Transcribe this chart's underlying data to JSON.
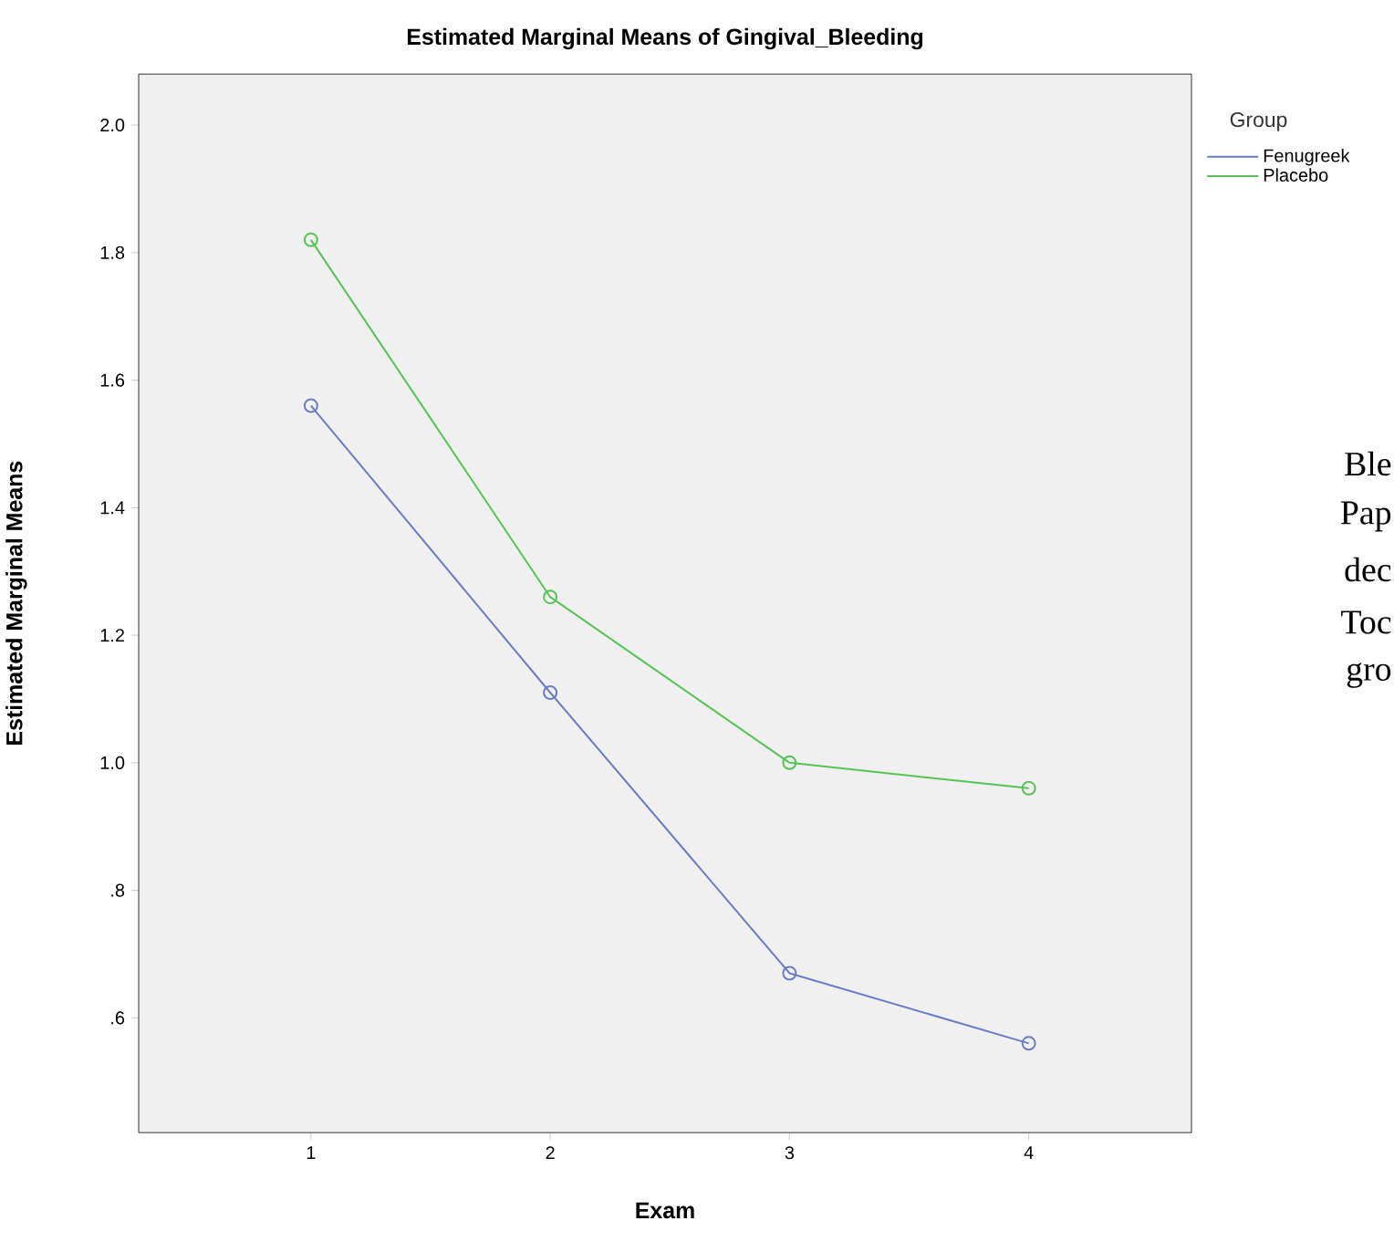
{
  "chart_data": {
    "type": "line",
    "title": "Estimated Marginal Means of Gingival_Bleeding",
    "xlabel": "Exam",
    "ylabel": "Estimated Marginal Means",
    "categories": [
      "1",
      "2",
      "3",
      "4"
    ],
    "series": [
      {
        "name": "Fenugreek",
        "color": "#6b7cc6",
        "values": [
          1.56,
          1.11,
          0.67,
          0.56
        ]
      },
      {
        "name": "Placebo",
        "color": "#55c455",
        "values": [
          1.82,
          1.26,
          1.0,
          0.96
        ]
      }
    ],
    "ylim": [
      0.42,
      2.08
    ],
    "yticks": [
      {
        "value": 0.6,
        "label": ".6"
      },
      {
        "value": 0.8,
        "label": ".8"
      },
      "1.0",
      "1.2",
      "1.4",
      "1.6",
      "1.8",
      "2.0"
    ],
    "marker": "circle",
    "legend": "top right",
    "legend_title": "Group",
    "annotations": [
      "Ble",
      "Pap",
      "dec",
      "Toc",
      "gro"
    ]
  }
}
